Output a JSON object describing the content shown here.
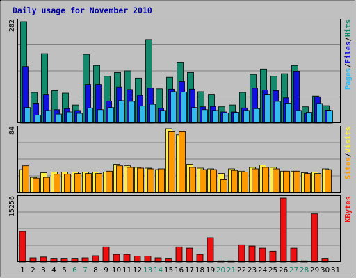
{
  "chart_data": [
    {
      "type": "bar",
      "title": "Daily usage for November 2010",
      "ylabel_max": "282",
      "ymax": 282,
      "categories": [
        "1",
        "2",
        "3",
        "4",
        "5",
        "6",
        "7",
        "8",
        "9",
        "10",
        "11",
        "12",
        "13",
        "14",
        "15",
        "16",
        "17",
        "18",
        "19",
        "20",
        "21",
        "22",
        "23",
        "24",
        "25",
        "26",
        "27",
        "28",
        "29",
        "30",
        "31"
      ],
      "weekend_days": [
        "6",
        "7",
        "13",
        "14",
        "20",
        "21",
        "27",
        "28"
      ],
      "series": [
        {
          "name": "Hits",
          "color": "#138a6b",
          "values": [
            282,
            85,
            193,
            90,
            83,
            50,
            191,
            160,
            130,
            140,
            145,
            125,
            232,
            95,
            127,
            169,
            140,
            87,
            80,
            45,
            50,
            85,
            135,
            150,
            130,
            137,
            160,
            45,
            75,
            48,
            0
          ]
        },
        {
          "name": "Files",
          "color": "#1010e0",
          "values": [
            157,
            55,
            80,
            37,
            40,
            35,
            107,
            107,
            61,
            100,
            93,
            77,
            97,
            41,
            94,
            115,
            94,
            45,
            46,
            31,
            31,
            42,
            97,
            92,
            90,
            70,
            144,
            27,
            73,
            36,
            0
          ]
        },
        {
          "name": "Pages",
          "color": "#33bbee",
          "values": [
            43,
            22,
            35,
            25,
            31,
            27,
            42,
            37,
            43,
            62,
            60,
            47,
            52,
            35,
            87,
            86,
            43,
            37,
            35,
            28,
            30,
            35,
            40,
            80,
            60,
            55,
            35,
            30,
            54,
            35,
            0
          ]
        }
      ]
    },
    {
      "type": "bar",
      "ylabel_max": "84",
      "ymax": 84,
      "series": [
        {
          "name": "Visits",
          "color": "#ffee44",
          "values": [
            30,
            20,
            26,
            27,
            27,
            27,
            27,
            27,
            27,
            37,
            35,
            33,
            32,
            30,
            84,
            76,
            37,
            32,
            31,
            25,
            31,
            28,
            33,
            36,
            33,
            28,
            28,
            26,
            27,
            31,
            0
          ]
        },
        {
          "name": "Sites",
          "color": "#ff9900",
          "values": [
            35,
            19,
            20,
            24,
            24,
            25,
            25,
            25,
            28,
            35,
            33,
            32,
            31,
            31,
            80,
            80,
            33,
            30,
            30,
            17,
            29,
            27,
            31,
            33,
            31,
            28,
            28,
            25,
            25,
            30,
            0
          ]
        }
      ]
    },
    {
      "type": "bar",
      "ylabel_max": "15256",
      "ymax": 15256,
      "series": [
        {
          "name": "KBytes",
          "color": "#ee1010",
          "values": [
            7300,
            1000,
            1200,
            900,
            900,
            900,
            1000,
            1500,
            3600,
            1800,
            1800,
            1400,
            1400,
            1000,
            900,
            3600,
            3300,
            1800,
            5800,
            300,
            300,
            4100,
            3800,
            3300,
            2600,
            15256,
            3300,
            300,
            11500,
            900,
            0
          ]
        }
      ]
    }
  ]
}
